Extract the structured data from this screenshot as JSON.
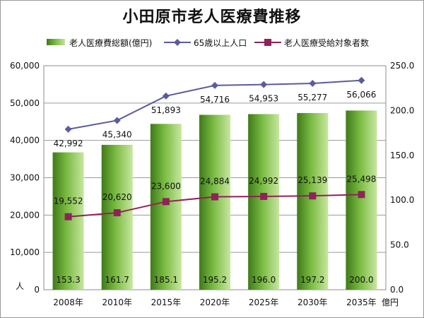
{
  "chart_data": {
    "type": "bar",
    "title": "小田原市老人医療費推移",
    "categories": [
      "2008年",
      "2010年",
      "2015年",
      "2020年",
      "2025年",
      "2030年",
      "2035年"
    ],
    "series": [
      {
        "name": "老人医療費総額(億円)",
        "kind": "bar",
        "axis": "right",
        "values": [
          153.3,
          161.7,
          185.1,
          195.2,
          196.0,
          197.2,
          200.0
        ],
        "labels": [
          "153.3",
          "161.7",
          "185.1",
          "195.2",
          "196.0",
          "197.2",
          "200.0"
        ],
        "color": "#6aa232"
      },
      {
        "name": "65歳以上人口",
        "kind": "line",
        "axis": "left",
        "values": [
          42992,
          45340,
          51893,
          54716,
          54953,
          55277,
          56066
        ],
        "labels": [
          "42,992",
          "45,340",
          "51,893",
          "54,716",
          "54,953",
          "55,277",
          "56,066"
        ],
        "color": "#5b5b9e"
      },
      {
        "name": "老人医療受給対象者数",
        "kind": "line",
        "axis": "left",
        "values": [
          19552,
          20620,
          23600,
          24884,
          24992,
          25139,
          25498
        ],
        "labels": [
          "19,552",
          "20,620",
          "23,600",
          "24,884",
          "24,992",
          "25,139",
          "25,498"
        ],
        "color": "#8e2358"
      }
    ],
    "left_axis": {
      "unit": "人",
      "ylim": [
        0,
        60000
      ],
      "ticks": [
        "0",
        "10,000",
        "20,000",
        "30,000",
        "40,000",
        "50,000",
        "60,000"
      ]
    },
    "right_axis": {
      "unit": "億円",
      "ylim": [
        0,
        250
      ],
      "ticks": [
        "0.0",
        "50.0",
        "100.0",
        "150.0",
        "200.0",
        "250.0"
      ]
    },
    "grid": true,
    "legend_position": "top"
  }
}
